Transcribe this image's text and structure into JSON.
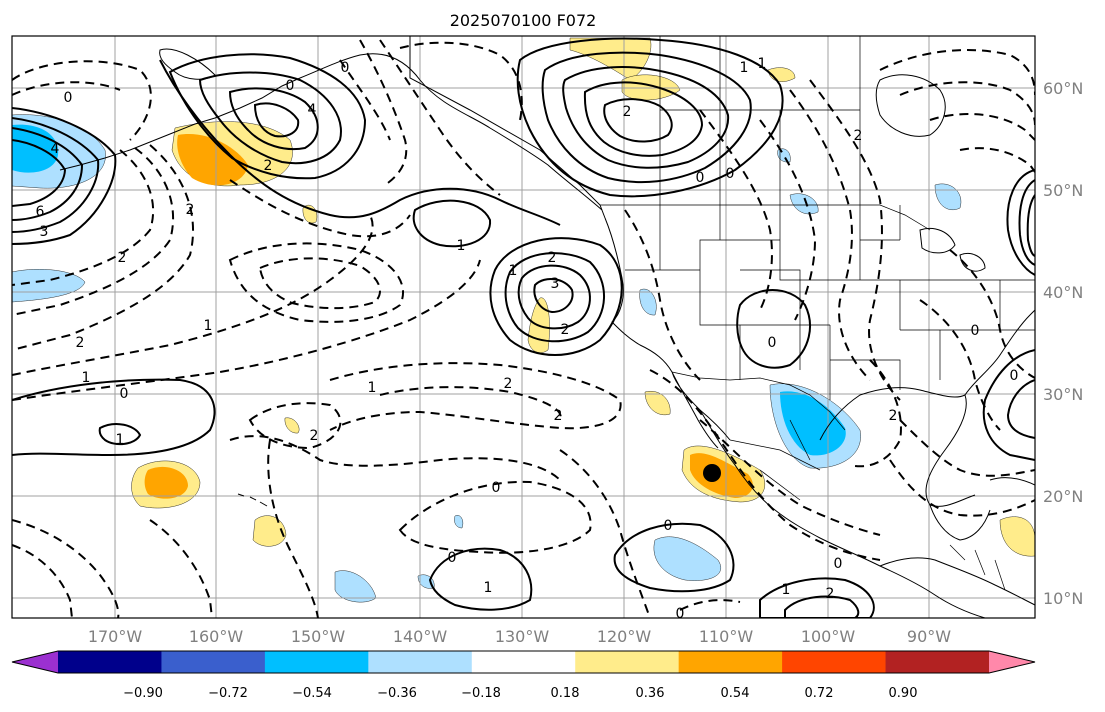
{
  "title": "2025070100 F072",
  "map": {
    "lat_labels": [
      "60°N",
      "50°N",
      "40°N",
      "30°N",
      "20°N",
      "10°N"
    ],
    "lon_labels": [
      "170°W",
      "160°W",
      "150°W",
      "140°W",
      "130°W",
      "120°W",
      "110°W",
      "100°W",
      "90°W"
    ],
    "contour_labels": [
      "0",
      "4",
      "6",
      "3",
      "2",
      "1",
      "2",
      "1",
      "2",
      "0",
      "1",
      "4",
      "2",
      "0",
      "0",
      "1",
      "2",
      "3",
      "2",
      "1",
      "1",
      "2",
      "2",
      "2",
      "0",
      "2",
      "1",
      "0",
      "0",
      "1",
      "0",
      "0",
      "2",
      "2",
      "0",
      "0",
      "1",
      "1",
      "2",
      "0",
      "0",
      "0"
    ]
  },
  "colorbar": {
    "ticks": [
      "−0.90",
      "−0.72",
      "−0.54",
      "−0.36",
      "−0.18",
      "0.18",
      "0.36",
      "0.54",
      "0.72",
      "0.90"
    ],
    "colors": [
      "#9b30d0",
      "#00008b",
      "#3a5fcd",
      "#00bfff",
      "#aee0ff",
      "#ffffff",
      "#ffec8b",
      "#ffa500",
      "#ff4500",
      "#b22222",
      "#ff88aa"
    ]
  }
}
